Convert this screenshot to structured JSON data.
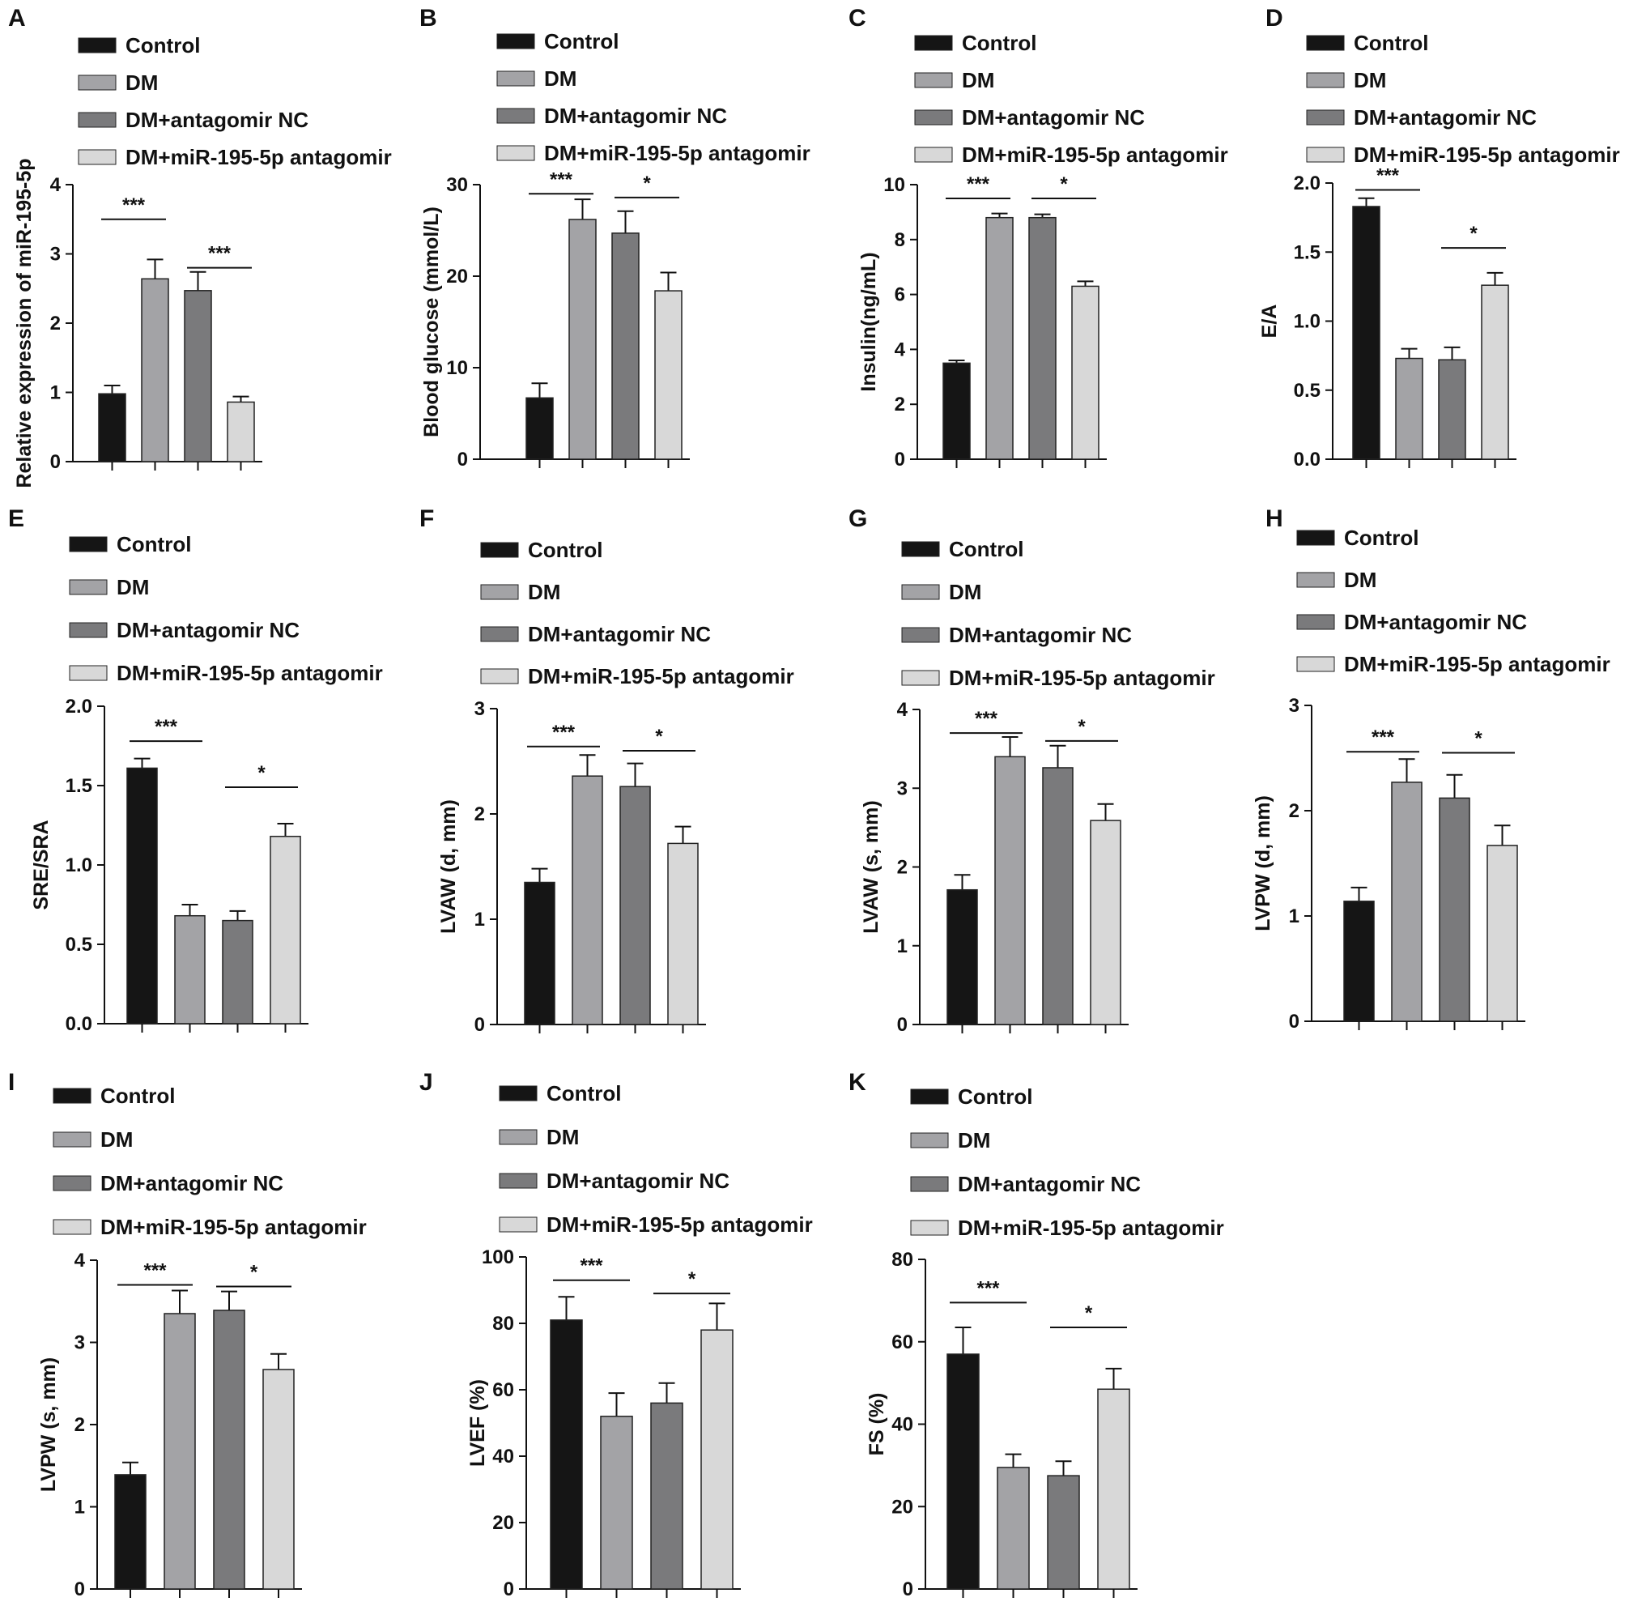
{
  "figure": {
    "legend_labels": [
      "Control",
      "DM",
      "DM+antagomir NC",
      "DM+miR-195-5p antagomir"
    ],
    "colors": [
      "#151515",
      "#a3a3a6",
      "#7a7a7c",
      "#d8d8d8"
    ]
  },
  "chart_data": [
    {
      "panel": "A",
      "type": "bar",
      "categories": [
        "Control",
        "DM",
        "DM+antagomir NC",
        "DM+miR-195-5p antagomir"
      ],
      "values": [
        0.98,
        2.64,
        2.47,
        0.86
      ],
      "errors": [
        0.12,
        0.28,
        0.27,
        0.08
      ],
      "ylabel": "Relative expression of miR-195-5p",
      "ylim": [
        0,
        4
      ],
      "yticks": [
        "0",
        "1",
        "2",
        "3",
        "4"
      ],
      "significance": [
        {
          "groups": [
            0,
            1
          ],
          "label": "***",
          "level": 3.5
        },
        {
          "groups": [
            2,
            3
          ],
          "label": "***",
          "level": 2.8
        }
      ]
    },
    {
      "panel": "B",
      "type": "bar",
      "categories": [
        "Control",
        "DM",
        "DM+antagomir NC",
        "DM+miR-195-5p antagomir"
      ],
      "values": [
        6.7,
        26.2,
        24.7,
        18.4
      ],
      "errors": [
        1.6,
        2.2,
        2.4,
        2.0
      ],
      "ylabel": "Blood glucose (mmol/L)",
      "ylim": [
        0,
        30
      ],
      "yticks": [
        "0",
        "10",
        "20",
        "30"
      ],
      "significance": [
        {
          "groups": [
            0,
            1
          ],
          "label": "***",
          "level": 29.0
        },
        {
          "groups": [
            2,
            3
          ],
          "label": "*",
          "level": 28.6
        }
      ]
    },
    {
      "panel": "C",
      "type": "bar",
      "categories": [
        "Control",
        "DM",
        "DM+antagomir NC",
        "DM+miR-195-5p antagomir"
      ],
      "values": [
        3.5,
        8.8,
        8.8,
        6.3
      ],
      "errors": [
        0.1,
        0.15,
        0.12,
        0.18
      ],
      "ylabel": "Insulin(ng/mL)",
      "ylim": [
        0,
        10
      ],
      "yticks": [
        "0",
        "2",
        "4",
        "6",
        "8",
        "10"
      ],
      "significance": [
        {
          "groups": [
            0,
            1
          ],
          "label": "***",
          "level": 9.5
        },
        {
          "groups": [
            2,
            3
          ],
          "label": "*",
          "level": 9.5
        }
      ]
    },
    {
      "panel": "D",
      "type": "bar",
      "categories": [
        "Control",
        "DM",
        "DM+antagomir NC",
        "DM+miR-195-5p antagomir"
      ],
      "values": [
        1.83,
        0.73,
        0.72,
        1.26
      ],
      "errors": [
        0.06,
        0.07,
        0.09,
        0.09
      ],
      "ylabel": "E/A",
      "ylim": [
        0,
        2.0
      ],
      "yticks": [
        "0.0",
        "0.5",
        "1.0",
        "1.5",
        "2.0"
      ],
      "significance": [
        {
          "groups": [
            0,
            1
          ],
          "label": "***",
          "level": 1.95
        },
        {
          "groups": [
            2,
            3
          ],
          "label": "*",
          "level": 1.53
        }
      ]
    },
    {
      "panel": "E",
      "type": "bar",
      "categories": [
        "Control",
        "DM",
        "DM+antagomir NC",
        "DM+miR-195-5p antagomir"
      ],
      "values": [
        1.61,
        0.68,
        0.65,
        1.18
      ],
      "errors": [
        0.06,
        0.07,
        0.06,
        0.08
      ],
      "ylabel": "SRE/SRA",
      "ylim": [
        0,
        2.0
      ],
      "yticks": [
        "0.0",
        "0.5",
        "1.0",
        "1.5",
        "2.0"
      ],
      "significance": [
        {
          "groups": [
            0,
            1
          ],
          "label": "***",
          "level": 1.78
        },
        {
          "groups": [
            2,
            3
          ],
          "label": "*",
          "level": 1.49
        }
      ]
    },
    {
      "panel": "F",
      "type": "bar",
      "categories": [
        "Control",
        "DM",
        "DM+antagomir NC",
        "DM+miR-195-5p antagomir"
      ],
      "values": [
        1.35,
        2.36,
        2.26,
        1.72
      ],
      "errors": [
        0.13,
        0.2,
        0.22,
        0.16
      ],
      "ylabel": "LVAW (d, mm)",
      "ylim": [
        0,
        3
      ],
      "yticks": [
        "0",
        "1",
        "2",
        "3"
      ],
      "significance": [
        {
          "groups": [
            0,
            1
          ],
          "label": "***",
          "level": 2.64
        },
        {
          "groups": [
            2,
            3
          ],
          "label": "*",
          "level": 2.6
        }
      ]
    },
    {
      "panel": "G",
      "type": "bar",
      "categories": [
        "Control",
        "DM",
        "DM+antagomir NC",
        "DM+miR-195-5p antagomir"
      ],
      "values": [
        1.71,
        3.4,
        3.26,
        2.59
      ],
      "errors": [
        0.19,
        0.25,
        0.28,
        0.21
      ],
      "ylabel": "LVAW (s, mm)",
      "ylim": [
        0,
        4
      ],
      "yticks": [
        "0",
        "1",
        "2",
        "3",
        "4"
      ],
      "significance": [
        {
          "groups": [
            0,
            1
          ],
          "label": "***",
          "level": 3.7
        },
        {
          "groups": [
            2,
            3
          ],
          "label": "*",
          "level": 3.6
        }
      ]
    },
    {
      "panel": "H",
      "type": "bar",
      "categories": [
        "Control",
        "DM",
        "DM+antagomir NC",
        "DM+miR-195-5p antagomir"
      ],
      "values": [
        1.14,
        2.27,
        2.12,
        1.67
      ],
      "errors": [
        0.13,
        0.22,
        0.22,
        0.19
      ],
      "ylabel": "LVPW (d, mm)",
      "ylim": [
        0,
        3
      ],
      "yticks": [
        "0",
        "1",
        "2",
        "3"
      ],
      "significance": [
        {
          "groups": [
            0,
            1
          ],
          "label": "***",
          "level": 2.56
        },
        {
          "groups": [
            2,
            3
          ],
          "label": "*",
          "level": 2.55
        }
      ]
    },
    {
      "panel": "I",
      "type": "bar",
      "categories": [
        "Control",
        "DM",
        "DM+antagomir NC",
        "DM+miR-195-5p antagomir"
      ],
      "values": [
        1.39,
        3.35,
        3.39,
        2.67
      ],
      "errors": [
        0.15,
        0.28,
        0.23,
        0.19
      ],
      "ylabel": "LVPW (s, mm)",
      "ylim": [
        0,
        4
      ],
      "yticks": [
        "0",
        "1",
        "2",
        "3",
        "4"
      ],
      "significance": [
        {
          "groups": [
            0,
            1
          ],
          "label": "***",
          "level": 3.7
        },
        {
          "groups": [
            2,
            3
          ],
          "label": "*",
          "level": 3.68
        }
      ]
    },
    {
      "panel": "J",
      "type": "bar",
      "categories": [
        "Control",
        "DM",
        "DM+antagomir NC",
        "DM+miR-195-5p antagomir"
      ],
      "values": [
        81,
        52,
        56,
        78
      ],
      "errors": [
        7,
        7,
        6,
        8
      ],
      "ylabel": "LVEF (%)",
      "ylim": [
        0,
        100
      ],
      "yticks": [
        "0",
        "20",
        "40",
        "60",
        "80",
        "100"
      ],
      "significance": [
        {
          "groups": [
            0,
            1
          ],
          "label": "***",
          "level": 93
        },
        {
          "groups": [
            2,
            3
          ],
          "label": "*",
          "level": 89
        }
      ]
    },
    {
      "panel": "K",
      "type": "bar",
      "categories": [
        "Control",
        "DM",
        "DM+antagomir NC",
        "DM+miR-195-5p antagomir"
      ],
      "values": [
        57,
        29.5,
        27.5,
        48.5
      ],
      "errors": [
        6.5,
        3.2,
        3.5,
        5
      ],
      "ylabel": "FS (%)",
      "ylim": [
        0,
        80
      ],
      "yticks": [
        "0",
        "20",
        "40",
        "60",
        "80"
      ],
      "significance": [
        {
          "groups": [
            0,
            1
          ],
          "label": "***",
          "level": 69.5
        },
        {
          "groups": [
            2,
            3
          ],
          "label": "*",
          "level": 63.5
        }
      ]
    }
  ]
}
